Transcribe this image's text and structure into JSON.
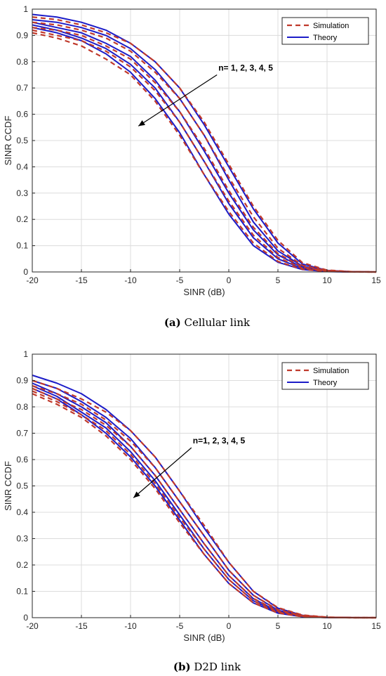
{
  "colors": {
    "simulation": "#c0392b",
    "theory": "#1c1cc8",
    "grid": "#dcdcdc",
    "axis": "#262626"
  },
  "chart_data": [
    {
      "type": "line",
      "caption_letter": "(a)",
      "caption_text": " Cellular link",
      "xlabel": "SINR (dB)",
      "ylabel": "SINR CCDF",
      "xlim": [
        -20,
        15
      ],
      "ylim": [
        0,
        1
      ],
      "xticks": [
        -20,
        -15,
        -10,
        -5,
        0,
        5,
        10,
        15
      ],
      "yticks": [
        0,
        0.1,
        0.2,
        0.3,
        0.4,
        0.5,
        0.6,
        0.7,
        0.8,
        0.9,
        1
      ],
      "ytick_labels": [
        "0",
        "0.1",
        "0.2",
        "0.3",
        "0.4",
        "0.5",
        "0.6",
        "0.7",
        "0.8",
        "0.9",
        "1"
      ],
      "grid": true,
      "legend_position": "top-right",
      "legend": [
        "Simulation",
        "Theory"
      ],
      "annotation": "n= 1, 2, 3, 4, 5",
      "x": [
        -20,
        -17.5,
        -15,
        -12.5,
        -10,
        -7.5,
        -5,
        -2.5,
        0,
        2.5,
        5,
        7.5,
        10,
        12.5,
        15
      ],
      "series": [
        {
          "style": "theory",
          "values": [
            0.98,
            0.97,
            0.95,
            0.92,
            0.87,
            0.8,
            0.7,
            0.56,
            0.4,
            0.24,
            0.11,
            0.03,
            0.006,
            0.001,
            0.0
          ]
        },
        {
          "style": "theory",
          "values": [
            0.96,
            0.95,
            0.93,
            0.9,
            0.85,
            0.77,
            0.66,
            0.52,
            0.35,
            0.19,
            0.08,
            0.022,
            0.004,
            0.0005,
            0.0
          ]
        },
        {
          "style": "theory",
          "values": [
            0.95,
            0.93,
            0.91,
            0.87,
            0.82,
            0.73,
            0.61,
            0.46,
            0.3,
            0.16,
            0.065,
            0.017,
            0.003,
            0.0003,
            0.0
          ]
        },
        {
          "style": "theory",
          "values": [
            0.94,
            0.92,
            0.89,
            0.85,
            0.79,
            0.7,
            0.57,
            0.42,
            0.26,
            0.13,
            0.05,
            0.013,
            0.002,
            0.0002,
            0.0
          ]
        },
        {
          "style": "theory",
          "values": [
            0.93,
            0.91,
            0.88,
            0.83,
            0.76,
            0.66,
            0.53,
            0.37,
            0.22,
            0.1,
            0.037,
            0.009,
            0.0015,
            0.0001,
            0.0
          ]
        },
        {
          "style": "simulation",
          "values": [
            0.97,
            0.96,
            0.94,
            0.91,
            0.87,
            0.8,
            0.7,
            0.57,
            0.41,
            0.25,
            0.12,
            0.035,
            0.007,
            0.001,
            0.0
          ]
        },
        {
          "style": "simulation",
          "values": [
            0.95,
            0.94,
            0.92,
            0.89,
            0.84,
            0.76,
            0.66,
            0.52,
            0.36,
            0.21,
            0.09,
            0.025,
            0.005,
            0.0005,
            0.0
          ]
        },
        {
          "style": "simulation",
          "values": [
            0.93,
            0.92,
            0.9,
            0.86,
            0.81,
            0.72,
            0.61,
            0.47,
            0.31,
            0.17,
            0.07,
            0.019,
            0.004,
            0.0003,
            0.0
          ]
        },
        {
          "style": "simulation",
          "values": [
            0.92,
            0.9,
            0.88,
            0.84,
            0.78,
            0.69,
            0.57,
            0.42,
            0.27,
            0.14,
            0.055,
            0.014,
            0.003,
            0.0002,
            0.0
          ]
        },
        {
          "style": "simulation",
          "values": [
            0.91,
            0.89,
            0.86,
            0.81,
            0.75,
            0.65,
            0.52,
            0.37,
            0.23,
            0.11,
            0.04,
            0.01,
            0.002,
            0.0001,
            0.0
          ]
        }
      ],
      "arrow": {
        "from": [
          -1.2,
          0.75
        ],
        "to": [
          -9.2,
          0.555
        ]
      }
    },
    {
      "type": "line",
      "caption_letter": "(b)",
      "caption_text": " D2D link",
      "xlabel": "SINR (dB)",
      "ylabel": "SINR CCDF",
      "xlim": [
        -20,
        15
      ],
      "ylim": [
        0,
        1
      ],
      "xticks": [
        -20,
        -15,
        -10,
        -5,
        0,
        5,
        10,
        15
      ],
      "yticks": [
        0,
        0.1,
        0.2,
        0.3,
        0.4,
        0.5,
        0.6,
        0.7,
        0.8,
        0.9,
        1
      ],
      "ytick_labels": [
        "0",
        "0.1",
        "0.2",
        "0.3",
        "0.4",
        "0.5",
        "0.6",
        "0.7",
        "0.8",
        "0.9",
        "1"
      ],
      "grid": true,
      "legend_position": "top-right",
      "legend": [
        "Simulation",
        "Theory"
      ],
      "annotation": "n=1, 2, 3, 4, 5",
      "x": [
        -20,
        -17.5,
        -15,
        -12.5,
        -10,
        -7.5,
        -5,
        -2.5,
        0,
        2.5,
        5,
        7.5,
        10,
        12.5,
        15
      ],
      "series": [
        {
          "style": "theory",
          "values": [
            0.92,
            0.89,
            0.85,
            0.79,
            0.71,
            0.61,
            0.48,
            0.34,
            0.21,
            0.1,
            0.036,
            0.009,
            0.0015,
            0.0002,
            0.0
          ]
        },
        {
          "style": "theory",
          "values": [
            0.9,
            0.87,
            0.82,
            0.76,
            0.68,
            0.57,
            0.44,
            0.31,
            0.18,
            0.085,
            0.028,
            0.007,
            0.0012,
            0.0001,
            0.0
          ]
        },
        {
          "style": "theory",
          "values": [
            0.89,
            0.85,
            0.8,
            0.74,
            0.65,
            0.54,
            0.41,
            0.28,
            0.16,
            0.072,
            0.023,
            0.005,
            0.0009,
            0.0001,
            0.0
          ]
        },
        {
          "style": "theory",
          "values": [
            0.88,
            0.84,
            0.78,
            0.72,
            0.63,
            0.52,
            0.39,
            0.26,
            0.145,
            0.064,
            0.02,
            0.0045,
            0.0007,
            0.0,
            0.0
          ]
        },
        {
          "style": "theory",
          "values": [
            0.87,
            0.83,
            0.77,
            0.7,
            0.61,
            0.5,
            0.37,
            0.24,
            0.13,
            0.056,
            0.017,
            0.0035,
            0.0005,
            0.0,
            0.0
          ]
        },
        {
          "style": "simulation",
          "values": [
            0.9,
            0.87,
            0.83,
            0.78,
            0.71,
            0.61,
            0.48,
            0.35,
            0.21,
            0.1,
            0.038,
            0.01,
            0.002,
            0.0002,
            0.0
          ]
        },
        {
          "style": "simulation",
          "values": [
            0.88,
            0.85,
            0.81,
            0.75,
            0.67,
            0.57,
            0.44,
            0.31,
            0.18,
            0.085,
            0.03,
            0.008,
            0.0015,
            0.0001,
            0.0
          ]
        },
        {
          "style": "simulation",
          "values": [
            0.87,
            0.83,
            0.79,
            0.73,
            0.65,
            0.54,
            0.41,
            0.28,
            0.16,
            0.073,
            0.025,
            0.006,
            0.001,
            0.0001,
            0.0
          ]
        },
        {
          "style": "simulation",
          "values": [
            0.86,
            0.82,
            0.77,
            0.71,
            0.62,
            0.51,
            0.38,
            0.26,
            0.145,
            0.064,
            0.021,
            0.005,
            0.0008,
            0.0,
            0.0
          ]
        },
        {
          "style": "simulation",
          "values": [
            0.85,
            0.81,
            0.76,
            0.69,
            0.6,
            0.49,
            0.36,
            0.24,
            0.13,
            0.056,
            0.018,
            0.004,
            0.0006,
            0.0,
            0.0
          ]
        }
      ],
      "arrow": {
        "from": [
          -3.8,
          0.645
        ],
        "to": [
          -9.7,
          0.455
        ]
      }
    }
  ]
}
